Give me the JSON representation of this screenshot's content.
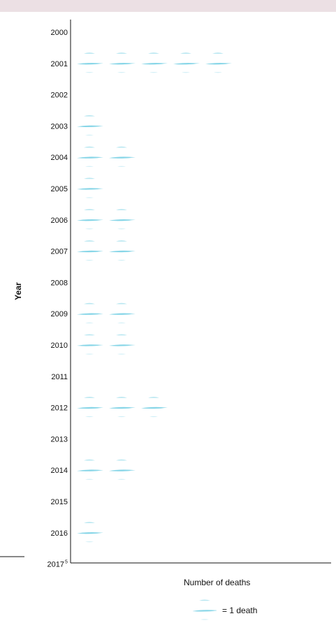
{
  "chart_data": {
    "type": "pictogram",
    "orientation": "horizontal",
    "ylabel": "Year",
    "xlabel": "Number of deaths",
    "legend": {
      "label": "= 1 death",
      "icon": "feather-icon"
    },
    "icon_color": "#7fd3e6",
    "categories": [
      "2000",
      "2001",
      "2002",
      "2003",
      "2004",
      "2005",
      "2006",
      "2007",
      "2008",
      "2009",
      "2010",
      "2011",
      "2012",
      "2013",
      "2014",
      "2015",
      "2016",
      "2017"
    ],
    "category_superscripts": {
      "2017": "5"
    },
    "values": [
      0,
      5,
      0,
      1,
      2,
      1,
      2,
      2,
      0,
      2,
      2,
      0,
      3,
      0,
      2,
      0,
      1,
      0
    ],
    "grid": false
  }
}
